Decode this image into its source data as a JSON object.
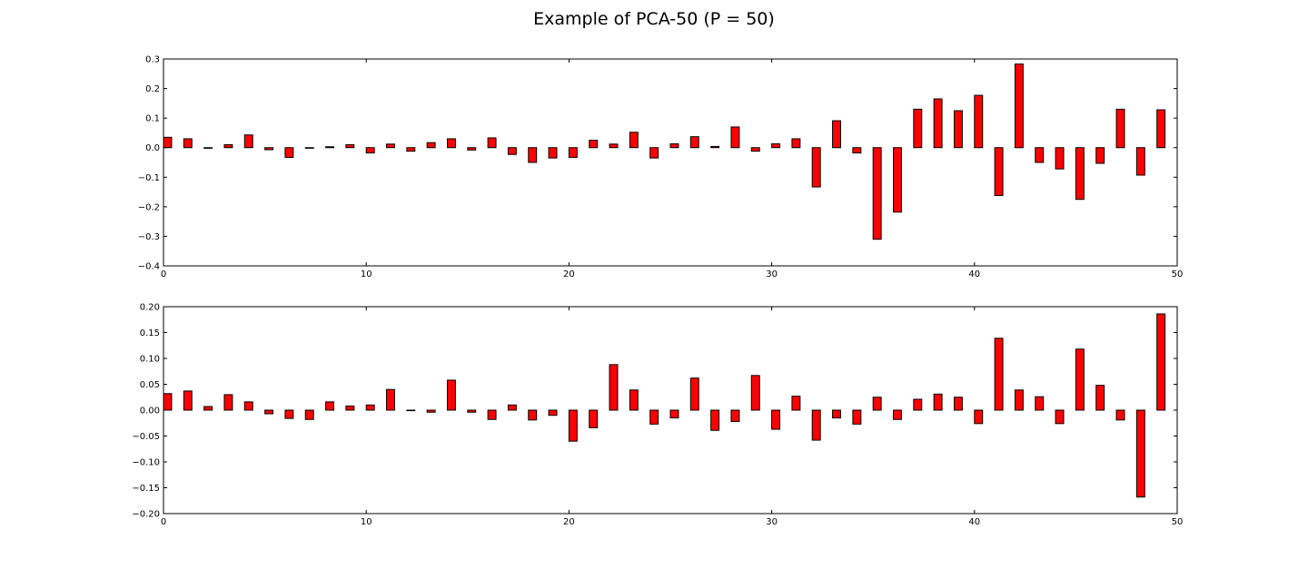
{
  "figure": {
    "title": "Example of PCA-50 (P = 50)"
  },
  "colors": {
    "bar_fill": "#ff0000",
    "bar_edge": "#000000",
    "axes": "#000000"
  },
  "chart_data": [
    {
      "type": "bar",
      "title": "",
      "xlabel": "",
      "ylabel": "",
      "xlim": [
        0,
        50
      ],
      "ylim": [
        -0.4,
        0.3
      ],
      "xticks": [
        0,
        10,
        20,
        30,
        40,
        50
      ],
      "yticks": [
        -0.4,
        -0.3,
        -0.2,
        -0.1,
        0.0,
        0.1,
        0.2,
        0.3
      ],
      "ytick_labels": [
        "−0.4",
        "−0.3",
        "−0.2",
        "−0.1",
        "0.0",
        "0.1",
        "0.2",
        "0.3"
      ],
      "grid": false,
      "x": [
        0,
        1,
        2,
        3,
        4,
        5,
        6,
        7,
        8,
        9,
        10,
        11,
        12,
        13,
        14,
        15,
        16,
        17,
        18,
        19,
        20,
        21,
        22,
        23,
        24,
        25,
        26,
        27,
        28,
        29,
        30,
        31,
        32,
        33,
        34,
        35,
        36,
        37,
        38,
        39,
        40,
        41,
        42,
        43,
        44,
        45,
        46,
        47,
        48,
        49
      ],
      "values": [
        0.035,
        0.03,
        -0.002,
        0.01,
        0.043,
        -0.007,
        -0.033,
        -0.002,
        0.003,
        0.01,
        -0.018,
        0.012,
        -0.012,
        0.017,
        0.03,
        -0.008,
        0.033,
        -0.023,
        -0.05,
        -0.035,
        -0.033,
        0.025,
        0.012,
        0.052,
        -0.035,
        0.013,
        0.037,
        0.004,
        0.07,
        -0.012,
        0.013,
        0.03,
        -0.133,
        0.091,
        -0.018,
        -0.31,
        -0.218,
        0.13,
        0.165,
        0.125,
        0.177,
        -0.162,
        0.283,
        -0.05,
        -0.072,
        -0.175,
        -0.053,
        0.13,
        -0.093,
        0.128
      ]
    },
    {
      "type": "bar",
      "title": "",
      "xlabel": "",
      "ylabel": "",
      "xlim": [
        0,
        50
      ],
      "ylim": [
        -0.2,
        0.2
      ],
      "xticks": [
        0,
        10,
        20,
        30,
        40,
        50
      ],
      "yticks": [
        -0.2,
        -0.15,
        -0.1,
        -0.05,
        0.0,
        0.05,
        0.1,
        0.15,
        0.2
      ],
      "ytick_labels": [
        "−0.20",
        "−0.15",
        "−0.10",
        "−0.05",
        "0.00",
        "0.05",
        "0.10",
        "0.15",
        "0.20"
      ],
      "grid": false,
      "x": [
        0,
        1,
        2,
        3,
        4,
        5,
        6,
        7,
        8,
        9,
        10,
        11,
        12,
        13,
        14,
        15,
        16,
        17,
        18,
        19,
        20,
        21,
        22,
        23,
        24,
        25,
        26,
        27,
        28,
        29,
        30,
        31,
        32,
        33,
        34,
        35,
        36,
        37,
        38,
        39,
        40,
        41,
        42,
        43,
        44,
        45,
        46,
        47,
        48,
        49
      ],
      "values": [
        0.032,
        0.037,
        0.007,
        0.03,
        0.016,
        -0.007,
        -0.016,
        -0.018,
        0.016,
        0.008,
        0.01,
        0.04,
        -0.001,
        -0.004,
        0.058,
        -0.004,
        -0.018,
        0.01,
        -0.019,
        -0.01,
        -0.06,
        -0.034,
        0.088,
        0.039,
        -0.027,
        -0.015,
        0.062,
        -0.039,
        -0.022,
        0.067,
        -0.037,
        0.027,
        -0.058,
        -0.015,
        -0.027,
        0.025,
        -0.018,
        0.021,
        0.031,
        0.025,
        -0.026,
        0.139,
        0.039,
        0.026,
        -0.026,
        0.118,
        0.048,
        -0.019,
        -0.168,
        0.186
      ]
    }
  ]
}
